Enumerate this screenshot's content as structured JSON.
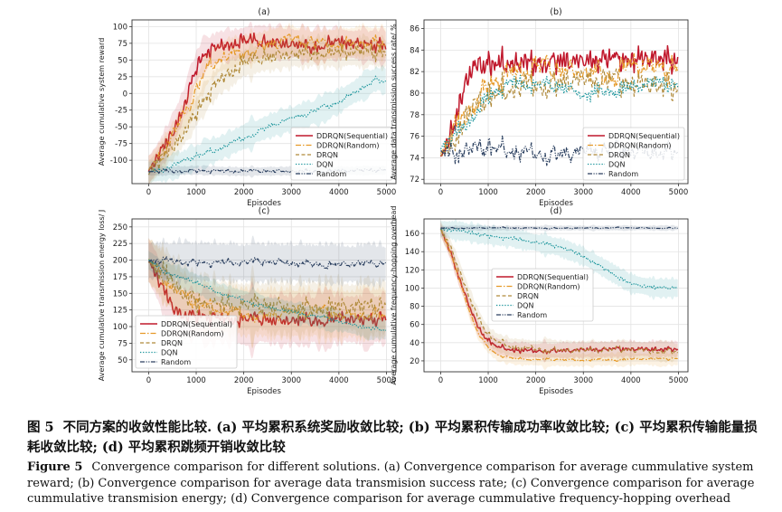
{
  "chart_data": [
    {
      "type": "line",
      "panel_label": "(a)",
      "title": "(a)",
      "xlabel": "Episodes",
      "ylabel": "Average cumulative system reward",
      "xlim": [
        -350,
        5200
      ],
      "ylim": [
        -135,
        110
      ],
      "xticks": [
        0,
        1000,
        2000,
        3000,
        4000,
        5000
      ],
      "yticks": [
        -100,
        -75,
        -50,
        -25,
        0,
        25,
        50,
        75,
        100
      ],
      "grid": true,
      "legend": {
        "position": "lower-right",
        "entries": [
          "DDRQN(Sequential)",
          "DDRQN(Random)",
          "DRQN",
          "DQN",
          "Random"
        ]
      },
      "series": [
        {
          "name": "DDRQN(Sequential)",
          "color": "#c0182c",
          "style": "solid",
          "x": [
            0,
            200,
            400,
            600,
            800,
            1000,
            1200,
            1500,
            2000,
            2500,
            3000,
            3500,
            4000,
            4500,
            5000
          ],
          "values": [
            -115,
            -95,
            -70,
            -40,
            -5,
            40,
            60,
            70,
            75,
            78,
            75,
            72,
            75,
            72,
            70
          ],
          "noise": 9,
          "band": 28
        },
        {
          "name": "DDRQN(Random)",
          "color": "#e69a28",
          "style": "dashdot",
          "x": [
            0,
            300,
            600,
            900,
            1200,
            1500,
            2000,
            2500,
            3000,
            3500,
            4000,
            4500,
            5000
          ],
          "values": [
            -115,
            -90,
            -55,
            -15,
            35,
            55,
            65,
            72,
            80,
            70,
            75,
            78,
            75
          ],
          "noise": 9,
          "band": 28
        },
        {
          "name": "DRQN",
          "color": "#b08a3a",
          "style": "dashed",
          "x": [
            0,
            300,
            600,
            900,
            1200,
            1500,
            2000,
            2500,
            3000,
            3500,
            4000,
            4500,
            5000
          ],
          "values": [
            -120,
            -95,
            -70,
            -40,
            -5,
            20,
            45,
            55,
            60,
            62,
            60,
            62,
            60
          ],
          "noise": 8,
          "band": 25
        },
        {
          "name": "DQN",
          "color": "#17939a",
          "style": "dotted",
          "x": [
            0,
            500,
            1000,
            1500,
            2000,
            2500,
            3000,
            3500,
            4000,
            4500,
            4800,
            5000
          ],
          "values": [
            -118,
            -110,
            -95,
            -82,
            -65,
            -50,
            -38,
            -28,
            -12,
            10,
            22,
            18
          ],
          "noise": 4,
          "band": 22
        },
        {
          "name": "Random",
          "color": "#2a3f5f",
          "style": "dashdotdot",
          "x": [
            0,
            1000,
            2000,
            3000,
            4000,
            5000
          ],
          "values": [
            -117,
            -115,
            -117,
            -116,
            -116,
            -115
          ],
          "noise": 2,
          "band": 8
        }
      ]
    },
    {
      "type": "line",
      "panel_label": "(b)",
      "title": "(b)",
      "xlabel": "Episodes",
      "ylabel": "Average data transmission success rate/ %",
      "xlim": [
        -350,
        5200
      ],
      "ylim": [
        71.6,
        86.8
      ],
      "xticks": [
        0,
        1000,
        2000,
        3000,
        4000,
        5000
      ],
      "yticks": [
        72,
        74,
        76,
        78,
        80,
        82,
        84,
        86
      ],
      "grid": true,
      "legend": {
        "position": "lower-right",
        "entries": [
          "DDRQN(Sequential)",
          "DDRQN(Random)",
          "DRQN",
          "DQN",
          "Random"
        ]
      },
      "series": [
        {
          "name": "DDRQN(Sequential)",
          "color": "#c0182c",
          "style": "solid",
          "x": [
            0,
            200,
            400,
            600,
            800,
            1000,
            1500,
            2000,
            2500,
            3000,
            3500,
            4000,
            4500,
            5000
          ],
          "values": [
            74.0,
            76.0,
            79.0,
            81.5,
            82.5,
            82.5,
            82.8,
            83.0,
            83.0,
            82.8,
            83.0,
            83.2,
            83.5,
            83.0
          ],
          "noise": 0.9,
          "band": 0
        },
        {
          "name": "DDRQN(Random)",
          "color": "#e69a28",
          "style": "dashdot",
          "x": [
            0,
            300,
            600,
            1000,
            1500,
            2000,
            2500,
            3000,
            3500,
            4000,
            4500,
            5000
          ],
          "values": [
            74.5,
            76.5,
            79.0,
            81.0,
            81.8,
            82.0,
            82.0,
            82.3,
            82.0,
            82.5,
            82.0,
            82.0
          ],
          "noise": 1.0,
          "band": 0
        },
        {
          "name": "DRQN",
          "color": "#b08a3a",
          "style": "dashed",
          "x": [
            0,
            300,
            600,
            1000,
            1500,
            2000,
            2500,
            3000,
            3500,
            4000,
            4500,
            5000
          ],
          "values": [
            74.0,
            76.0,
            78.0,
            79.5,
            80.5,
            81.0,
            81.0,
            81.2,
            81.0,
            81.0,
            81.0,
            80.5
          ],
          "noise": 0.9,
          "band": 0
        },
        {
          "name": "DQN",
          "color": "#17939a",
          "style": "dotted",
          "x": [
            0,
            300,
            600,
            900,
            1200,
            1500,
            2000,
            2500,
            3000,
            3500,
            4000,
            4500,
            5000
          ],
          "values": [
            75.0,
            76.0,
            77.5,
            79.5,
            80.5,
            81.0,
            80.5,
            80.5,
            80.0,
            80.5,
            80.5,
            80.8,
            80.5
          ],
          "noise": 0.7,
          "band": 0
        },
        {
          "name": "Random",
          "color": "#2a3f5f",
          "style": "dashdotdot",
          "x": [
            0,
            1000,
            2000,
            3000,
            4000,
            5000
          ],
          "values": [
            74.5,
            74.7,
            74.5,
            74.5,
            74.6,
            74.7
          ],
          "noise": 0.6,
          "band": 0
        }
      ]
    },
    {
      "type": "line",
      "panel_label": "(c)",
      "title": "(c)",
      "xlabel": "Episodes",
      "ylabel": "Average cumulative transmission energy loss/ J",
      "xlim": [
        -350,
        5200
      ],
      "ylim": [
        32,
        262
      ],
      "xticks": [
        0,
        1000,
        2000,
        3000,
        4000,
        5000
      ],
      "yticks": [
        50,
        75,
        100,
        125,
        150,
        175,
        200,
        225,
        250
      ],
      "grid": true,
      "legend": {
        "position": "lower-left",
        "entries": [
          "DDRQN(Sequential)",
          "DDRQN(Random)",
          "DRQN",
          "DQN",
          "Random"
        ]
      },
      "series": [
        {
          "name": "DDRQN(Sequential)",
          "color": "#c0182c",
          "style": "solid",
          "x": [
            0,
            150,
            300,
            500,
            700,
            1000,
            1500,
            2000,
            2500,
            3000,
            3500,
            4000,
            4500,
            5000
          ],
          "values": [
            200,
            180,
            155,
            130,
            120,
            118,
            112,
            110,
            110,
            110,
            110,
            112,
            110,
            112
          ],
          "noise": 8,
          "band": 45
        },
        {
          "name": "DDRQN(Random)",
          "color": "#e69a28",
          "style": "dashdot",
          "x": [
            0,
            300,
            600,
            1000,
            1500,
            2000,
            2500,
            3000,
            3500,
            4000,
            4500,
            5000
          ],
          "values": [
            200,
            175,
            150,
            130,
            125,
            122,
            120,
            120,
            120,
            118,
            120,
            120
          ],
          "noise": 9,
          "band": 45
        },
        {
          "name": "DRQN",
          "color": "#b08a3a",
          "style": "dashed",
          "x": [
            0,
            300,
            600,
            1000,
            1500,
            2000,
            2500,
            3000,
            3500,
            4000,
            4500,
            5000
          ],
          "values": [
            200,
            180,
            160,
            140,
            132,
            130,
            130,
            128,
            130,
            130,
            128,
            130
          ],
          "noise": 10,
          "band": 45
        },
        {
          "name": "DQN",
          "color": "#17939a",
          "style": "dotted",
          "x": [
            0,
            300,
            600,
            1000,
            1500,
            2000,
            2500,
            3000,
            3500,
            4000,
            4500,
            5000
          ],
          "values": [
            200,
            185,
            175,
            165,
            150,
            140,
            130,
            122,
            115,
            108,
            100,
            95
          ],
          "noise": 3,
          "band": 18
        },
        {
          "name": "Random",
          "color": "#2a3f5f",
          "style": "dashdotdot",
          "x": [
            0,
            1000,
            2000,
            3000,
            4000,
            5000
          ],
          "values": [
            199,
            198,
            196,
            196,
            194,
            194
          ],
          "noise": 4,
          "band": 35
        }
      ]
    },
    {
      "type": "line",
      "panel_label": "(d)",
      "title": "(d)",
      "xlabel": "Episodes",
      "ylabel": "Average cumulative frequency-hopping overhead",
      "xlim": [
        -350,
        5200
      ],
      "ylim": [
        8,
        176
      ],
      "xticks": [
        0,
        1000,
        2000,
        3000,
        4000,
        5000
      ],
      "yticks": [
        20,
        40,
        60,
        80,
        100,
        120,
        140,
        160
      ],
      "grid": true,
      "legend": {
        "position": "center-left",
        "entries": [
          "DDRQN(Sequential)",
          "DDRQN(Random)",
          "DRQN",
          "DQN",
          "Random"
        ]
      },
      "series": [
        {
          "name": "DDRQN(Sequential)",
          "color": "#c0182c",
          "style": "solid",
          "x": [
            0,
            200,
            400,
            600,
            800,
            1000,
            1200,
            1500,
            2000,
            3000,
            4000,
            5000
          ],
          "values": [
            165,
            140,
            110,
            80,
            55,
            42,
            35,
            32,
            31,
            32,
            33,
            33
          ],
          "noise": 2,
          "band": 10
        },
        {
          "name": "DDRQN(Random)",
          "color": "#e69a28",
          "style": "dashdot",
          "x": [
            0,
            200,
            400,
            600,
            800,
            1000,
            1200,
            1500,
            2000,
            3000,
            4000,
            5000
          ],
          "values": [
            165,
            140,
            108,
            75,
            50,
            35,
            27,
            23,
            21,
            21,
            22,
            22
          ],
          "noise": 1.2,
          "band": 8
        },
        {
          "name": "DRQN",
          "color": "#b08a3a",
          "style": "dashed",
          "x": [
            0,
            200,
            400,
            600,
            800,
            1000,
            1200,
            1500,
            2000,
            3000,
            4000,
            5000
          ],
          "values": [
            165,
            145,
            120,
            90,
            65,
            48,
            40,
            35,
            33,
            32,
            32,
            30
          ],
          "noise": 2.5,
          "band": 12
        },
        {
          "name": "DQN",
          "color": "#17939a",
          "style": "dotted",
          "x": [
            0,
            500,
            1000,
            1500,
            2000,
            2500,
            3000,
            3500,
            4000,
            4500,
            5000
          ],
          "values": [
            165,
            162,
            158,
            155,
            150,
            145,
            135,
            120,
            105,
            100,
            100
          ],
          "noise": 2,
          "band": 12
        },
        {
          "name": "Random",
          "color": "#2a3f5f",
          "style": "dashdotdot",
          "x": [
            0,
            1000,
            2000,
            3000,
            4000,
            5000
          ],
          "values": [
            166,
            166,
            166,
            166,
            166,
            166
          ],
          "noise": 0.5,
          "band": 3
        }
      ]
    }
  ],
  "caption": {
    "cn_label": "图 5",
    "cn_text": "不同方案的收敛性能比较. (a) 平均累积系统奖励收敛比较; (b) 平均累积传输成功率收敛比较; (c) 平均累积传输能量损耗收敛比较; (d) 平均累积跳频开销收敛比较",
    "en_label": "Figure 5",
    "en_text": "Convergence comparison for different solutions. (a) Convergence comparison for average cummulative system reward; (b) Convergence comparison for average data transmision success rate; (c) Convergence comparison for average cummulative transmision energy; (d) Convergence comparison for average cummulative frequency-hopping overhead"
  }
}
